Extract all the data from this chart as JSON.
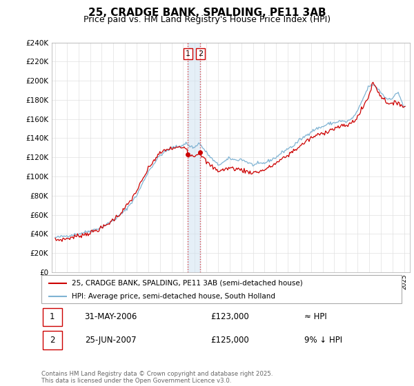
{
  "title": "25, CRADGE BANK, SPALDING, PE11 3AB",
  "subtitle": "Price paid vs. HM Land Registry's House Price Index (HPI)",
  "ylim": [
    0,
    240000
  ],
  "yticks": [
    0,
    20000,
    40000,
    60000,
    80000,
    100000,
    120000,
    140000,
    160000,
    180000,
    200000,
    220000,
    240000
  ],
  "ytick_labels": [
    "£0",
    "£20K",
    "£40K",
    "£60K",
    "£80K",
    "£100K",
    "£120K",
    "£140K",
    "£160K",
    "£180K",
    "£200K",
    "£220K",
    "£240K"
  ],
  "hpi_color": "#7fb3d3",
  "price_color": "#cc0000",
  "vline_color": "#dd4444",
  "legend_label_price": "25, CRADGE BANK, SPALDING, PE11 3AB (semi-detached house)",
  "legend_label_hpi": "HPI: Average price, semi-detached house, South Holland",
  "annotation1_label": "1",
  "annotation1_date": "31-MAY-2006",
  "annotation1_price": "£123,000",
  "annotation1_vs_hpi": "≈ HPI",
  "annotation2_label": "2",
  "annotation2_date": "25-JUN-2007",
  "annotation2_price": "£125,000",
  "annotation2_vs_hpi": "9% ↓ HPI",
  "footer": "Contains HM Land Registry data © Crown copyright and database right 2025.\nThis data is licensed under the Open Government Licence v3.0.",
  "purchase1_year": 2006.41,
  "purchase1_price": 123000,
  "purchase2_year": 2007.48,
  "purchase2_price": 125000,
  "xlim_left": 1994.7,
  "xlim_right": 2025.5,
  "shade_color": "#cce0f0",
  "shade_alpha": 0.5
}
